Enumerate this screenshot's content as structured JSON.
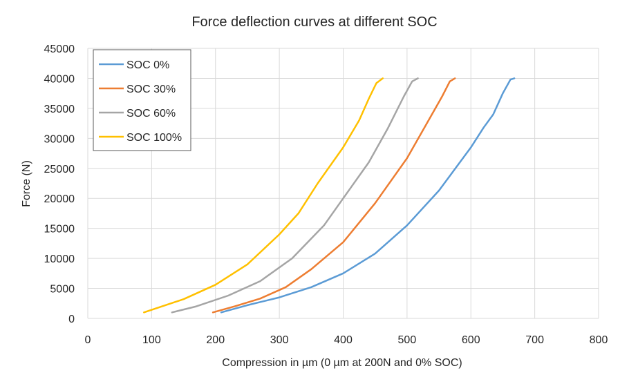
{
  "chart_data": {
    "type": "line",
    "title": "Force deflection curves at different SOC",
    "xlabel": "Compression in µm (0 µm at 200N and 0% SOC)",
    "ylabel": "Force (N)",
    "xlim": [
      0,
      800
    ],
    "ylim": [
      0,
      45000
    ],
    "xticks": [
      0,
      100,
      200,
      300,
      400,
      500,
      600,
      700,
      800
    ],
    "yticks": [
      0,
      5000,
      10000,
      15000,
      20000,
      25000,
      30000,
      35000,
      40000,
      45000
    ],
    "grid": true,
    "legend": "top-left",
    "series": [
      {
        "name": "SOC 0%",
        "color": "#5b9bd5",
        "points": [
          [
            209,
            1000
          ],
          [
            250,
            2200
          ],
          [
            300,
            3500
          ],
          [
            350,
            5200
          ],
          [
            400,
            7500
          ],
          [
            450,
            10800
          ],
          [
            500,
            15500
          ],
          [
            550,
            21300
          ],
          [
            600,
            28500
          ],
          [
            620,
            31800
          ],
          [
            635,
            34000
          ],
          [
            650,
            37500
          ],
          [
            662,
            39800
          ],
          [
            668,
            40000
          ]
        ]
      },
      {
        "name": "SOC 30%",
        "color": "#ed7d31",
        "points": [
          [
            196,
            1000
          ],
          [
            230,
            2000
          ],
          [
            270,
            3300
          ],
          [
            310,
            5200
          ],
          [
            350,
            8200
          ],
          [
            400,
            12700
          ],
          [
            450,
            19200
          ],
          [
            500,
            26700
          ],
          [
            530,
            32300
          ],
          [
            555,
            37000
          ],
          [
            567,
            39500
          ],
          [
            575,
            40000
          ]
        ]
      },
      {
        "name": "SOC 60%",
        "color": "#a5a5a5",
        "points": [
          [
            132,
            1000
          ],
          [
            170,
            2000
          ],
          [
            220,
            3800
          ],
          [
            270,
            6200
          ],
          [
            320,
            10000
          ],
          [
            370,
            15500
          ],
          [
            400,
            20000
          ],
          [
            440,
            26000
          ],
          [
            470,
            31700
          ],
          [
            495,
            37000
          ],
          [
            508,
            39500
          ],
          [
            517,
            40000
          ]
        ]
      },
      {
        "name": "SOC 100%",
        "color": "#ffc000",
        "points": [
          [
            88,
            1000
          ],
          [
            150,
            3200
          ],
          [
            200,
            5600
          ],
          [
            250,
            9000
          ],
          [
            300,
            14000
          ],
          [
            330,
            17500
          ],
          [
            360,
            22500
          ],
          [
            400,
            28500
          ],
          [
            425,
            33000
          ],
          [
            440,
            36600
          ],
          [
            452,
            39200
          ],
          [
            462,
            40000
          ]
        ]
      }
    ]
  }
}
